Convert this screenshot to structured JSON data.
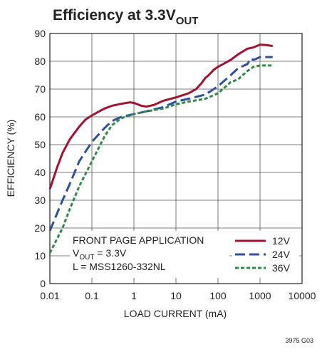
{
  "chart_data": {
    "type": "line",
    "title": [
      "Efficiency at 3.3V",
      "OUT"
    ],
    "xlabel": "LOAD CURRENT (mA)",
    "ylabel": "EFFICIENCY (%)",
    "xscale": "log",
    "xlim": [
      0.01,
      10000
    ],
    "xticks": [
      0.01,
      0.1,
      1,
      10,
      100,
      1000,
      10000
    ],
    "ylim": [
      0,
      90
    ],
    "yticks": [
      0,
      10,
      20,
      30,
      40,
      50,
      60,
      70,
      80,
      90
    ],
    "grid": true,
    "legend": "lower right",
    "annotations": [
      "FRONT PAGE APPLICATION",
      "V",
      "OUT",
      " = 3.3V",
      "L = MSS1260-332NL"
    ],
    "footnote": "3975 G03",
    "series": [
      {
        "name": "12V",
        "color": "#a3132e",
        "style": "solid",
        "x": [
          0.01,
          0.015,
          0.02,
          0.03,
          0.05,
          0.07,
          0.1,
          0.15,
          0.2,
          0.3,
          0.5,
          0.8,
          1,
          1.5,
          2,
          3,
          5,
          10,
          20,
          30,
          40,
          50,
          60,
          80,
          100,
          200,
          300,
          500,
          700,
          1000,
          1500,
          2000
        ],
        "values": [
          34,
          42,
          47,
          52,
          56.5,
          59,
          60.5,
          62,
          63,
          64,
          64.7,
          65.2,
          65,
          64,
          63.7,
          64.3,
          65.8,
          67,
          68.5,
          70,
          72,
          74,
          75,
          77,
          78,
          80.5,
          82.5,
          84.5,
          85,
          86,
          85.8,
          85.5
        ]
      },
      {
        "name": "24V",
        "color": "#2f4f9f",
        "style": "dashed",
        "x": [
          0.01,
          0.02,
          0.03,
          0.05,
          0.1,
          0.2,
          0.3,
          0.5,
          1,
          2,
          5,
          10,
          20,
          50,
          100,
          200,
          300,
          500,
          600,
          700,
          1000,
          2000
        ],
        "values": [
          19,
          30,
          36,
          44,
          51,
          56,
          58.5,
          60,
          61,
          62,
          63.5,
          65.5,
          66.5,
          68,
          71,
          75,
          77.5,
          79,
          81,
          80.5,
          81.5,
          81.5
        ]
      },
      {
        "name": "36V",
        "color": "#2e8a45",
        "style": "dotted",
        "x": [
          0.01,
          0.02,
          0.03,
          0.05,
          0.1,
          0.2,
          0.3,
          0.5,
          1,
          2,
          5,
          10,
          20,
          50,
          100,
          200,
          300,
          500,
          700,
          1000,
          2000
        ],
        "values": [
          11,
          20,
          27,
          35,
          44,
          53,
          57,
          59.5,
          61,
          62,
          63,
          64.5,
          65.5,
          66.5,
          68.5,
          72.5,
          73.5,
          76.5,
          78,
          78.5,
          78.5
        ]
      }
    ]
  }
}
